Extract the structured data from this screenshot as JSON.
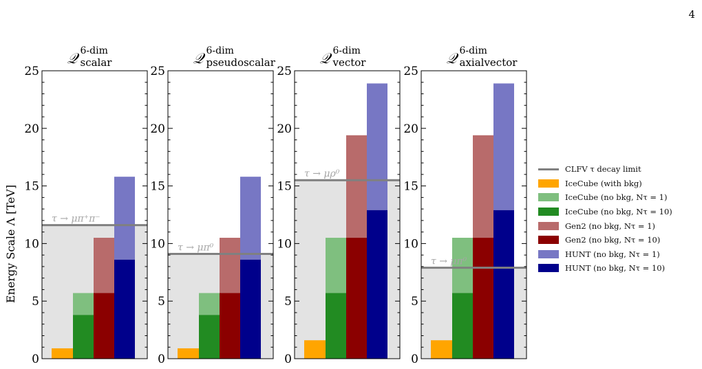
{
  "page_number": "4",
  "colors": {
    "limit_line": "#808080",
    "limit_band": "#e3e3e3",
    "limit_text": "#a6a6a6",
    "axes": "#000000"
  },
  "chart_data": {
    "type": "bar",
    "ylabel": "Energy Scale Λ [TeV]",
    "ylim": [
      0,
      25
    ],
    "yticks": [
      0,
      5,
      10,
      15,
      20,
      25
    ],
    "grid": false,
    "legend_position": "right",
    "series_order": [
      "IceCube (with bkg)",
      "IceCube (no bkg, Nτ = 10)",
      "IceCube (no bkg, Nτ = 1)",
      "Gen2 (no bkg, Nτ = 10)",
      "Gen2 (no bkg, Nτ = 1)",
      "HUNT (no bkg, Nτ = 10)",
      "HUNT (no bkg, Nτ = 1)"
    ],
    "legend": [
      {
        "label": "CLFV τ decay limit",
        "kind": "line",
        "color": "#808080"
      },
      {
        "label": "IceCube (with bkg)",
        "kind": "patch",
        "color": "#ffa500"
      },
      {
        "label": "IceCube (no bkg, Nτ = 1)",
        "kind": "patch",
        "color": "#7fbf7f"
      },
      {
        "label": "IceCube (no bkg, Nτ = 10)",
        "kind": "patch",
        "color": "#228b22"
      },
      {
        "label": "Gen2 (no bkg, Nτ = 1)",
        "kind": "patch",
        "color": "#b86b6b"
      },
      {
        "label": "Gen2 (no bkg, Nτ = 10)",
        "kind": "patch",
        "color": "#8b0000"
      },
      {
        "label": "HUNT (no bkg, Nτ = 1)",
        "kind": "patch",
        "color": "#7777c4"
      },
      {
        "label": "HUNT (no bkg, Nτ = 10)",
        "kind": "patch",
        "color": "#00008b"
      }
    ],
    "panels": [
      {
        "title": "𝒬 6-dim scalar",
        "title_main": "𝒬",
        "title_sup": "6-dim",
        "title_sub": "scalar",
        "limit": 11.6,
        "limit_label": "τ → μπ⁺π⁻",
        "bars": [
          {
            "experiment": "IceCube",
            "with_bkg": 0.9,
            "n10": 3.8,
            "n1": 5.7
          },
          {
            "experiment": "Gen2",
            "n10": 5.7,
            "n1": 10.5
          },
          {
            "experiment": "HUNT",
            "n10": 8.6,
            "n1": 15.8
          }
        ]
      },
      {
        "title": "𝒬 6-dim pseudoscalar",
        "title_main": "𝒬",
        "title_sup": "6-dim",
        "title_sub": "pseudoscalar",
        "limit": 9.1,
        "limit_label": "τ → μπ⁰",
        "bars": [
          {
            "experiment": "IceCube",
            "with_bkg": 0.9,
            "n10": 3.8,
            "n1": 5.7
          },
          {
            "experiment": "Gen2",
            "n10": 5.7,
            "n1": 10.5
          },
          {
            "experiment": "HUNT",
            "n10": 8.6,
            "n1": 15.8
          }
        ]
      },
      {
        "title": "𝒬 6-dim vector",
        "title_main": "𝒬",
        "title_sup": "6-dim",
        "title_sub": "vector",
        "limit": 15.5,
        "limit_label": "τ → μρ⁰",
        "bars": [
          {
            "experiment": "IceCube",
            "with_bkg": 1.6,
            "n10": 5.7,
            "n1": 10.5
          },
          {
            "experiment": "Gen2",
            "n10": 10.5,
            "n1": 19.4
          },
          {
            "experiment": "HUNT",
            "n10": 12.9,
            "n1": 23.9
          }
        ]
      },
      {
        "title": "𝒬 6-dim axialvector",
        "title_main": "𝒬",
        "title_sup": "6-dim",
        "title_sub": "axialvector",
        "limit": 7.9,
        "limit_label": "τ → μπ⁰",
        "bars": [
          {
            "experiment": "IceCube",
            "with_bkg": 1.6,
            "n10": 5.7,
            "n1": 10.5
          },
          {
            "experiment": "Gen2",
            "n10": 10.5,
            "n1": 19.4
          },
          {
            "experiment": "HUNT",
            "n10": 12.9,
            "n1": 23.9
          }
        ]
      }
    ]
  }
}
